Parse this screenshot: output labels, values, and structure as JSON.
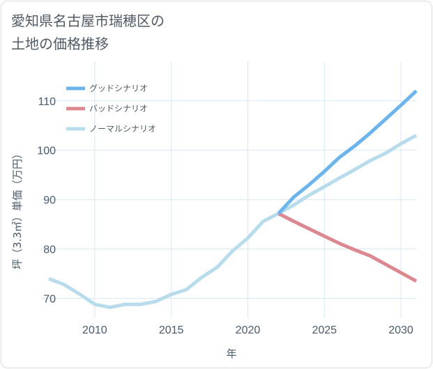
{
  "chart_data": {
    "type": "line",
    "title": "愛知県名古屋市瑞穂区の\n土地の価格推移",
    "xlabel": "年",
    "ylabel": "坪（3.3㎡）単価（万円）",
    "xlim": [
      2006.5,
      2031
    ],
    "ylim": [
      66,
      118
    ],
    "x_ticks": [
      2010,
      2015,
      2020,
      2025,
      2030
    ],
    "y_ticks": [
      70,
      80,
      90,
      100,
      110
    ],
    "grid": true,
    "legend_position": "top-left",
    "series": [
      {
        "name": "グッドシナリオ",
        "color": "#6cb4ec",
        "x": [
          2022,
          2023,
          2024,
          2025,
          2026,
          2027,
          2028,
          2029,
          2030,
          2031
        ],
        "y": [
          87.2,
          90.5,
          93.0,
          95.7,
          98.6,
          100.9,
          103.5,
          106.3,
          109.1,
          112.0
        ]
      },
      {
        "name": "バッドシナリオ",
        "color": "#dc8890",
        "x": [
          2022,
          2023,
          2024,
          2025,
          2026,
          2027,
          2028,
          2029,
          2030,
          2031
        ],
        "y": [
          87.2,
          85.6,
          84.1,
          82.6,
          81.1,
          79.8,
          78.6,
          76.9,
          75.2,
          73.5
        ]
      },
      {
        "name": "ノーマルシナリオ",
        "color": "#b8dcec",
        "x": [
          2007,
          2008,
          2009,
          2010,
          2011,
          2012,
          2013,
          2014,
          2015,
          2016,
          2017,
          2018,
          2019,
          2020,
          2021,
          2022,
          2023,
          2024,
          2025,
          2026,
          2027,
          2028,
          2029,
          2030,
          2031
        ],
        "y": [
          74.0,
          72.8,
          70.9,
          68.8,
          68.2,
          68.8,
          68.8,
          69.4,
          70.8,
          71.8,
          74.3,
          76.3,
          79.6,
          82.2,
          85.6,
          87.2,
          88.9,
          90.9,
          92.6,
          94.4,
          96.1,
          97.9,
          99.4,
          101.3,
          103.0
        ]
      }
    ]
  }
}
